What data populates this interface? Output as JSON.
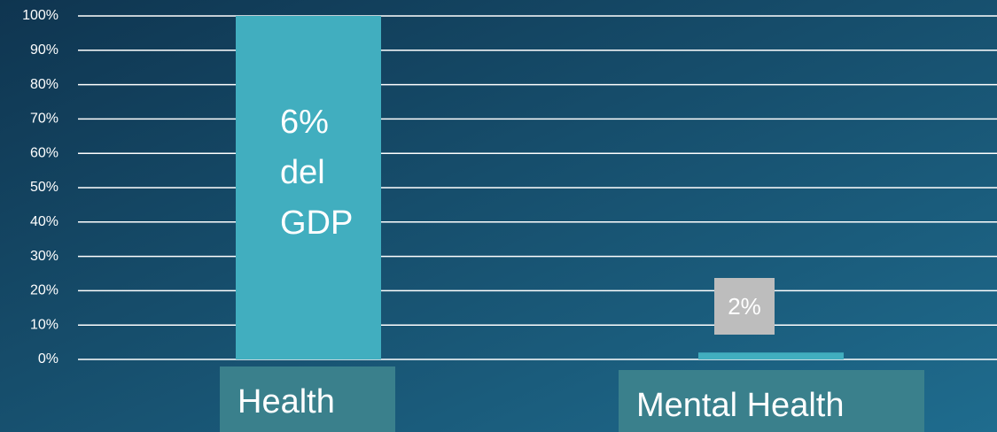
{
  "chart_data": {
    "type": "bar",
    "categories": [
      "Health",
      "Mental Health"
    ],
    "values": [
      100,
      2
    ],
    "annotations": [
      [
        "6%",
        "del",
        "GDP"
      ],
      [
        "2%"
      ]
    ],
    "color": "#41aebf",
    "ylim": [
      0,
      100
    ],
    "yticks": [
      {
        "value": 0,
        "label": "0%"
      },
      {
        "value": 10,
        "label": "10%"
      },
      {
        "value": 20,
        "label": "20%"
      },
      {
        "value": 30,
        "label": "30%"
      },
      {
        "value": 40,
        "label": "40%"
      },
      {
        "value": 50,
        "label": "50%"
      },
      {
        "value": 60,
        "label": "60%"
      },
      {
        "value": 70,
        "label": "70%"
      },
      {
        "value": 80,
        "label": "80%"
      },
      {
        "value": 90,
        "label": "90%"
      },
      {
        "value": 100,
        "label": "100%"
      }
    ],
    "grid": true
  }
}
